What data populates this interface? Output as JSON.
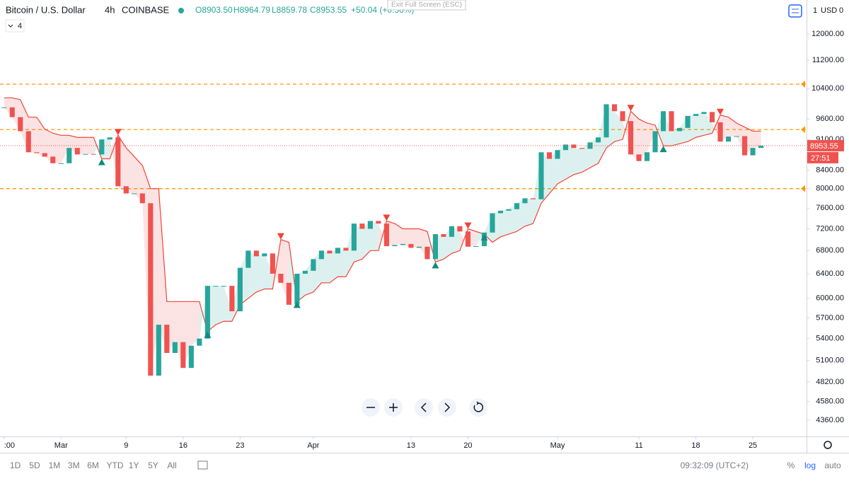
{
  "header": {
    "symbol": "Bitcoin / U.S. Dollar",
    "interval": "4h",
    "exchange": "COINBASE",
    "ohlc": {
      "open": "O8903.50",
      "high": "H8964.79",
      "low": "L8859.78",
      "close": "C8953.55",
      "change": "+50.04 (+0.56%)"
    },
    "indicators_count": "4",
    "exit_fullscreen": "Exit Full Screen (ESC)",
    "currency": "USD",
    "axis_marks": [
      "1",
      "0"
    ]
  },
  "chart_data": {
    "type": "candlestick",
    "log_scale": true,
    "xlim": [
      -7.5,
      91.6
    ],
    "x_start": -7,
    "xticks": [
      {
        "value": -7,
        "label": ":00"
      },
      {
        "value": 0,
        "label": "Mar"
      },
      {
        "value": 8,
        "label": "9"
      },
      {
        "value": 15,
        "label": "16"
      },
      {
        "value": 22,
        "label": "23"
      },
      {
        "value": 31,
        "label": "Apr"
      },
      {
        "value": 43,
        "label": "13"
      },
      {
        "value": 50,
        "label": "20"
      },
      {
        "value": 61,
        "label": "May"
      },
      {
        "value": 71,
        "label": "11"
      },
      {
        "value": 78,
        "label": "18"
      },
      {
        "value": 85,
        "label": "25"
      }
    ],
    "ylim": [
      4178,
      13117
    ],
    "yticks": [
      {
        "value": 4360,
        "label": "4360.00"
      },
      {
        "value": 4580,
        "label": "4580.00"
      },
      {
        "value": 4820,
        "label": "4820.00"
      },
      {
        "value": 5100,
        "label": "5100.00"
      },
      {
        "value": 5400,
        "label": "5400.00"
      },
      {
        "value": 5700,
        "label": "5700.00"
      },
      {
        "value": 6000,
        "label": "6000.00"
      },
      {
        "value": 6400,
        "label": "6400.00"
      },
      {
        "value": 6800,
        "label": "6800.00"
      },
      {
        "value": 7200,
        "label": "7200.00"
      },
      {
        "value": 7600,
        "label": "7600.00"
      },
      {
        "value": 8000,
        "label": "8000.00"
      },
      {
        "value": 8400,
        "label": "8400.00"
      },
      {
        "value": 9100,
        "label": "9100.00"
      },
      {
        "value": 9600,
        "label": "9600.00"
      },
      {
        "value": 10400,
        "label": "10400.00"
      },
      {
        "value": 11200,
        "label": "11200.00"
      },
      {
        "value": 12000,
        "label": "12000.00"
      }
    ],
    "up_color": "#26a69a",
    "down_color": "#ef5350",
    "close": [
      9900,
      9650,
      9300,
      8800,
      8780,
      8700,
      8550,
      8550,
      8900,
      8750,
      8760,
      8750,
      9100,
      9150,
      8050,
      7900,
      7900,
      7700,
      4900,
      5600,
      5200,
      5350,
      5000,
      5300,
      5400,
      6200,
      6200,
      6200,
      5800,
      6500,
      6800,
      6700,
      6750,
      6400,
      6250,
      5900,
      6400,
      6450,
      6650,
      6800,
      6750,
      6850,
      6800,
      7300,
      7200,
      7350,
      7300,
      6880,
      6900,
      6920,
      6850,
      6870,
      6650,
      7100,
      7050,
      7250,
      7150,
      6870,
      6880,
      7130,
      7500,
      7550,
      7580,
      7700,
      7800,
      7780,
      8800,
      8650,
      8850,
      8980,
      8900,
      8880,
      9030,
      9150,
      9980,
      9800,
      9550,
      8750,
      8600,
      8800,
      9300,
      9800,
      9300,
      9380,
      9680,
      9730,
      9780,
      9520,
      9050,
      9170,
      9180,
      8730,
      8900,
      8953.55
    ],
    "supertrend": [
      10150,
      10150,
      10100,
      9650,
      9650,
      9350,
      9250,
      9200,
      9200,
      9150,
      9150,
      9150,
      8650,
      8650,
      9200,
      8900,
      8700,
      8500,
      8000,
      8000,
      5950,
      5950,
      5950,
      5950,
      5950,
      5500,
      5600,
      5650,
      5650,
      5900,
      6000,
      6100,
      6150,
      6150,
      7000,
      6950,
      5950,
      6050,
      6100,
      6250,
      6250,
      6350,
      6350,
      6600,
      6650,
      6800,
      6800,
      7350,
      7300,
      7200,
      7200,
      7200,
      7150,
      6600,
      6650,
      6750,
      6800,
      7200,
      7150,
      7100,
      6950,
      7050,
      7100,
      7150,
      7250,
      7300,
      7700,
      7900,
      8100,
      8200,
      8300,
      8350,
      8450,
      8550,
      8900,
      9050,
      9100,
      9800,
      9600,
      9500,
      9450,
      8950,
      8950,
      9000,
      9050,
      9150,
      9200,
      9250,
      9700,
      9650,
      9500,
      9400,
      9300,
      9300
    ],
    "levels": [
      10520,
      9340,
      8000
    ],
    "level_color": "#ff9800",
    "last_price": 8953.55,
    "countdown": "27:51"
  },
  "toolbar": {
    "ranges": [
      "1D",
      "5D",
      "1M",
      "3M",
      "6M",
      "YTD",
      "1Y",
      "5Y",
      "All"
    ],
    "clock": "09:32:09 (UTC+2)",
    "percent": "%",
    "log": "log",
    "auto": "auto"
  }
}
